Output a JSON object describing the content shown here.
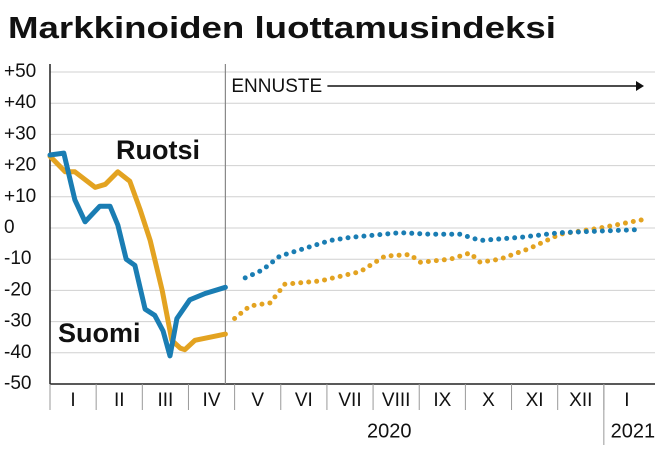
{
  "chart_data": {
    "type": "line",
    "title": "Markkinoiden luottamusindeksi",
    "categories": [
      "I",
      "II",
      "III",
      "IV",
      "V",
      "VI",
      "VII",
      "VIII",
      "IX",
      "X",
      "XI",
      "XII",
      "I"
    ],
    "years": [
      "2020",
      "2021"
    ],
    "forecast_label": "ENNUSTE",
    "forecast_x": 3.8,
    "xlim": [
      0,
      13
    ],
    "ylim": [
      -50,
      50
    ],
    "yticks": [
      {
        "value": 50,
        "label": "+50"
      },
      {
        "value": 40,
        "label": "+40"
      },
      {
        "value": 30,
        "label": "+30"
      },
      {
        "value": 20,
        "label": "+20"
      },
      {
        "value": 10,
        "label": "+10"
      },
      0,
      -10,
      -20,
      -30,
      -40,
      -50
    ],
    "grid": true,
    "series": [
      {
        "name": "Ruotsi",
        "color": "#e3a321",
        "x": [
          0,
          0.33,
          0.54,
          0.98,
          1.2,
          1.47,
          1.73,
          1.95,
          2.17,
          2.43,
          2.64,
          2.82,
          2.92,
          3.14,
          3.8,
          4.0,
          4.33,
          4.77,
          5.09,
          5.85,
          6.72,
          7.26,
          7.8,
          8.02,
          8.67,
          9.1,
          9.32,
          9.75,
          10.4,
          11.05,
          11.92,
          12.96
        ],
        "values": [
          23,
          18,
          18,
          13,
          14,
          18,
          15,
          6,
          -4,
          -20,
          -36,
          -38.5,
          -39,
          -36,
          -34,
          -29,
          -25,
          -24,
          -18,
          -17,
          -14,
          -9,
          -8.5,
          -11,
          -10,
          -8,
          -11,
          -10,
          -6.5,
          -2,
          0,
          3
        ]
      },
      {
        "name": "Suomi",
        "color": "#1a7db3",
        "x": [
          0,
          0.3,
          0.54,
          0.76,
          1.08,
          1.3,
          1.47,
          1.65,
          1.84,
          2.06,
          2.27,
          2.45,
          2.6,
          2.75,
          3.03,
          3.36,
          3.8,
          4.23,
          4.6,
          4.98,
          5.42,
          6.07,
          6.5,
          7.58,
          8.23,
          8.88,
          9.32,
          10.18,
          11.05,
          11.92,
          12.78
        ],
        "values": [
          23.4,
          24,
          9,
          2,
          7,
          7,
          1,
          -10,
          -12,
          -26,
          -28,
          -33,
          -41,
          -29,
          -23,
          -21,
          -19,
          -16,
          -13.5,
          -9,
          -7,
          -4,
          -3,
          -1.5,
          -2,
          -2,
          -4,
          -3,
          -1.5,
          -1,
          -0.5
        ]
      }
    ]
  }
}
